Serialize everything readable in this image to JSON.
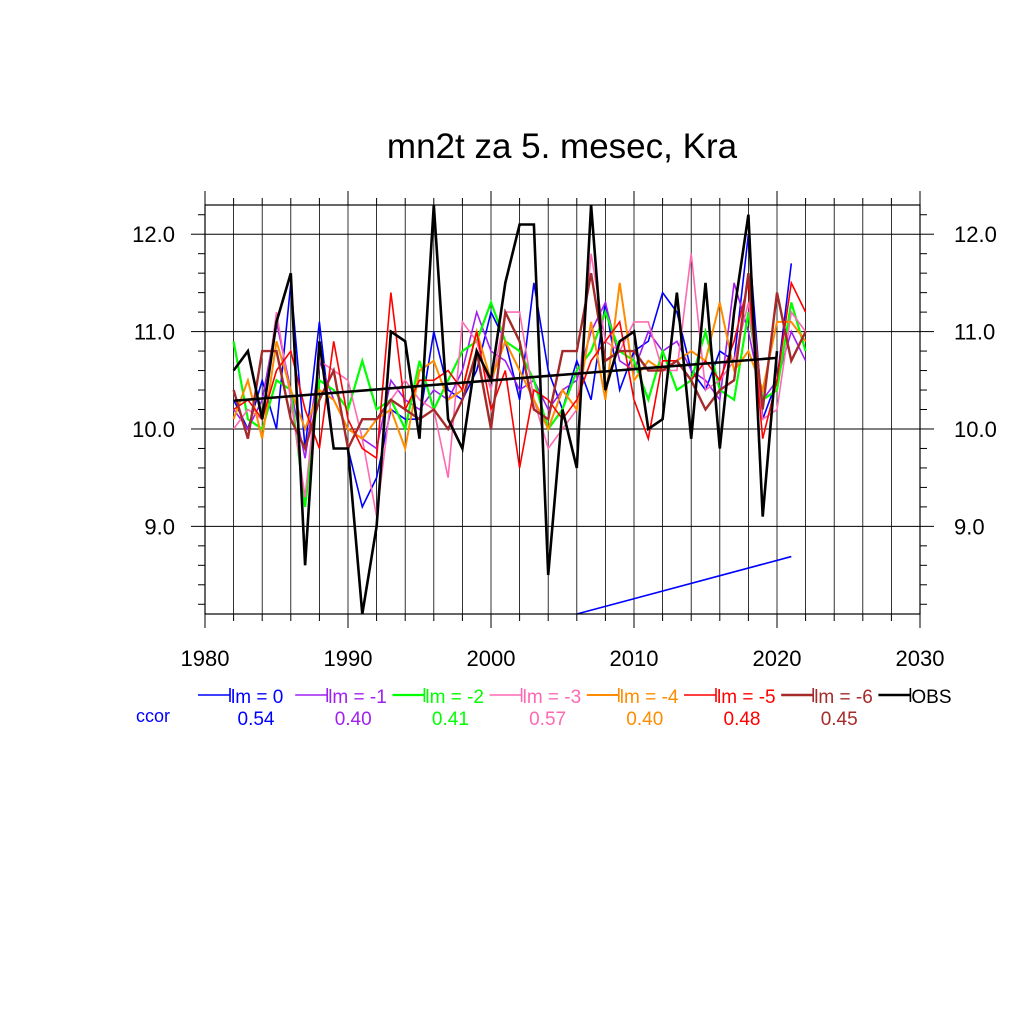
{
  "chart_data": {
    "type": "line",
    "title": "mn2t za 5. mesec, Kra",
    "xlabel": "",
    "ylabel": "",
    "xlim": [
      1980,
      2030
    ],
    "ylim": [
      8.1,
      12.3
    ],
    "x_ticks": [
      1980,
      1990,
      2000,
      2010,
      2020,
      2030
    ],
    "y_ticks": [
      9.0,
      10.0,
      11.0,
      12.0
    ],
    "x_tick_labels": [
      "1980",
      "1990",
      "2000",
      "2010",
      "2020",
      "2030"
    ],
    "y_tick_labels": [
      "9.0",
      "10.0",
      "11.0",
      "12.0"
    ],
    "grid": true,
    "x": [
      1982,
      1983,
      1984,
      1985,
      1986,
      1987,
      1988,
      1989,
      1990,
      1991,
      1992,
      1993,
      1994,
      1995,
      1996,
      1997,
      1998,
      1999,
      2000,
      2001,
      2002,
      2003,
      2004,
      2005,
      2006,
      2007,
      2008,
      2009,
      2010,
      2011,
      2012,
      2013,
      2014,
      2015,
      2016,
      2017,
      2018,
      2019,
      2020,
      2021,
      2022
    ],
    "series": [
      {
        "name": "lm = 0",
        "color": "#0000ff",
        "width": 1.6,
        "values": [
          10.3,
          10.0,
          10.5,
          10.0,
          11.5,
          9.8,
          11.1,
          9.8,
          9.8,
          9.2,
          9.5,
          10.2,
          10.1,
          10.1,
          11.0,
          10.4,
          10.3,
          10.6,
          11.2,
          10.9,
          10.3,
          11.5,
          10.6,
          10.2,
          10.7,
          10.3,
          11.3,
          10.4,
          10.8,
          10.9,
          11.4,
          11.2,
          10.6,
          10.4,
          10.8,
          10.7,
          12.0,
          10.1,
          10.5,
          11.7,
          null
        ],
        "ccor_label": "0.54"
      },
      {
        "name": "lm = -1",
        "color": "#a020f0",
        "width": 1.6,
        "values": [
          10.2,
          10.0,
          10.3,
          11.1,
          10.4,
          9.7,
          10.7,
          10.3,
          10.0,
          9.9,
          9.8,
          10.5,
          10.3,
          10.2,
          10.4,
          10.3,
          10.6,
          11.2,
          10.8,
          10.7,
          10.4,
          10.5,
          10.2,
          10.4,
          10.5,
          11.0,
          11.3,
          10.7,
          10.6,
          11.0,
          10.8,
          10.9,
          10.6,
          10.5,
          10.3,
          11.5,
          11.0,
          10.3,
          10.5,
          11.0,
          10.7
        ],
        "ccor_label": "0.40"
      },
      {
        "name": "lm = -2",
        "color": "#00ff00",
        "width": 2.2,
        "values": [
          10.9,
          10.1,
          10.0,
          10.5,
          10.4,
          9.2,
          10.5,
          10.4,
          10.2,
          10.7,
          10.2,
          10.3,
          10.0,
          10.7,
          10.2,
          10.5,
          10.8,
          10.9,
          11.3,
          10.9,
          10.8,
          10.5,
          10.0,
          10.2,
          10.6,
          10.8,
          11.2,
          10.8,
          10.7,
          10.3,
          10.8,
          10.4,
          10.5,
          11.0,
          10.4,
          10.3,
          11.2,
          10.3,
          10.4,
          11.3,
          10.8
        ],
        "ccor_label": "0.41"
      },
      {
        "name": "lm = -3",
        "color": "#ff69b4",
        "width": 1.6,
        "values": [
          10.0,
          10.2,
          10.1,
          11.2,
          10.3,
          9.3,
          10.7,
          10.6,
          10.5,
          9.9,
          9.1,
          10.3,
          10.5,
          10.3,
          10.2,
          9.5,
          11.1,
          10.9,
          10.4,
          11.2,
          11.2,
          10.3,
          9.8,
          10.0,
          10.2,
          11.8,
          10.9,
          10.8,
          11.1,
          11.1,
          10.6,
          10.6,
          11.8,
          10.4,
          10.5,
          10.7,
          11.3,
          10.1,
          10.2,
          11.2,
          11.0
        ],
        "ccor_label": "0.57"
      },
      {
        "name": "lm = -4",
        "color": "#ff8c00",
        "width": 2.0,
        "values": [
          10.1,
          10.5,
          9.9,
          10.9,
          10.4,
          10.0,
          10.4,
          10.3,
          10.0,
          9.9,
          10.1,
          10.2,
          9.8,
          10.6,
          10.7,
          10.3,
          10.4,
          11.0,
          10.5,
          10.9,
          10.6,
          10.3,
          10.0,
          10.4,
          10.2,
          11.1,
          10.3,
          11.5,
          10.5,
          10.7,
          10.6,
          10.7,
          10.8,
          10.7,
          11.3,
          10.6,
          10.8,
          10.4,
          11.1,
          11.1,
          10.9
        ],
        "ccor_label": "0.40"
      },
      {
        "name": "lm = -5",
        "color": "#ff0000",
        "width": 1.6,
        "values": [
          10.2,
          10.3,
          10.1,
          10.6,
          10.8,
          10.2,
          9.8,
          10.9,
          10.1,
          9.8,
          9.7,
          11.4,
          10.2,
          10.5,
          10.5,
          10.6,
          10.4,
          11.0,
          10.2,
          10.6,
          9.6,
          10.4,
          10.3,
          10.1,
          10.3,
          10.7,
          10.9,
          11.1,
          10.3,
          9.9,
          10.7,
          10.7,
          10.5,
          10.7,
          10.5,
          10.9,
          11.5,
          9.9,
          10.5,
          11.5,
          11.2
        ],
        "ccor_label": "0.48"
      },
      {
        "name": "lm = -6",
        "color": "#a52a2a",
        "width": 2.4,
        "values": [
          10.4,
          9.9,
          10.8,
          10.8,
          10.1,
          9.8,
          10.3,
          10.6,
          9.8,
          10.1,
          10.1,
          10.3,
          10.2,
          10.1,
          10.2,
          10.0,
          10.3,
          10.8,
          10.0,
          11.2,
          10.9,
          10.2,
          10.1,
          10.8,
          10.8,
          11.6,
          10.7,
          10.8,
          10.8,
          10.6,
          10.6,
          10.7,
          10.5,
          10.2,
          10.4,
          10.5,
          11.6,
          10.2,
          11.4,
          10.7,
          11.0
        ],
        "ccor_label": "0.45"
      },
      {
        "name": "OBS",
        "color": "#000000",
        "width": 2.6,
        "values": [
          10.6,
          10.8,
          10.1,
          11.1,
          11.6,
          8.6,
          10.9,
          9.8,
          9.8,
          8.1,
          9.0,
          11.0,
          10.9,
          9.9,
          12.3,
          10.1,
          9.8,
          10.8,
          10.5,
          11.5,
          12.1,
          12.1,
          8.5,
          10.2,
          9.6,
          12.3,
          10.4,
          10.9,
          11.0,
          10.0,
          10.1,
          11.4,
          9.9,
          11.5,
          9.8,
          11.2,
          12.2,
          9.1,
          10.8,
          null,
          null
        ]
      }
    ],
    "trend_lines": [
      {
        "color": "#000000",
        "width": 2.6,
        "x": [
          1982,
          2020
        ],
        "y": [
          10.29,
          10.73
        ]
      },
      {
        "color": "#0000ff",
        "width": 1.6,
        "x": [
          2006,
          2021
        ],
        "y": [
          8.1,
          8.69
        ]
      }
    ],
    "legend_placement": "bottom",
    "ccor_label": "ccor",
    "ccor_label_color": "#0000ff"
  }
}
